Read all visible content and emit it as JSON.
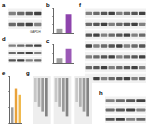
{
  "figure": {
    "panels": [
      {
        "label": "a",
        "blot_labels": [
          "GAPDH"
        ]
      },
      {
        "label": "b"
      },
      {
        "label": "c"
      },
      {
        "label": "d"
      },
      {
        "label": "e"
      },
      {
        "label": "f"
      },
      {
        "label": "g"
      },
      {
        "label": "h"
      }
    ]
  },
  "chart_data": [
    {
      "panel": "b",
      "type": "bar",
      "categories": [
        null,
        null
      ],
      "values": [
        1,
        4.5
      ],
      "colors": [
        "#9e9e9e",
        "#8e44ad"
      ],
      "ylim": [
        0,
        6
      ],
      "yticks": [
        0,
        2,
        4,
        6
      ],
      "tick_labels": false
    },
    {
      "panel": "c",
      "type": "bar",
      "categories": [
        null,
        null
      ],
      "values": [
        1,
        3
      ],
      "colors": [
        "#9e9e9e",
        "#9b59b6"
      ],
      "ylim": [
        0,
        4
      ],
      "yticks": [
        0,
        2,
        4
      ],
      "tick_labels": false
    },
    {
      "panel": "e",
      "type": "bar",
      "categories": [
        null,
        null,
        null
      ],
      "values": [
        1,
        2.2,
        1.8
      ],
      "colors": [
        "#9e9e9e",
        "#e9a23b",
        "#f0b84a"
      ],
      "ylim": [
        0,
        3
      ],
      "yticks": [
        0,
        1,
        2,
        3
      ],
      "tick_labels": false
    }
  ]
}
